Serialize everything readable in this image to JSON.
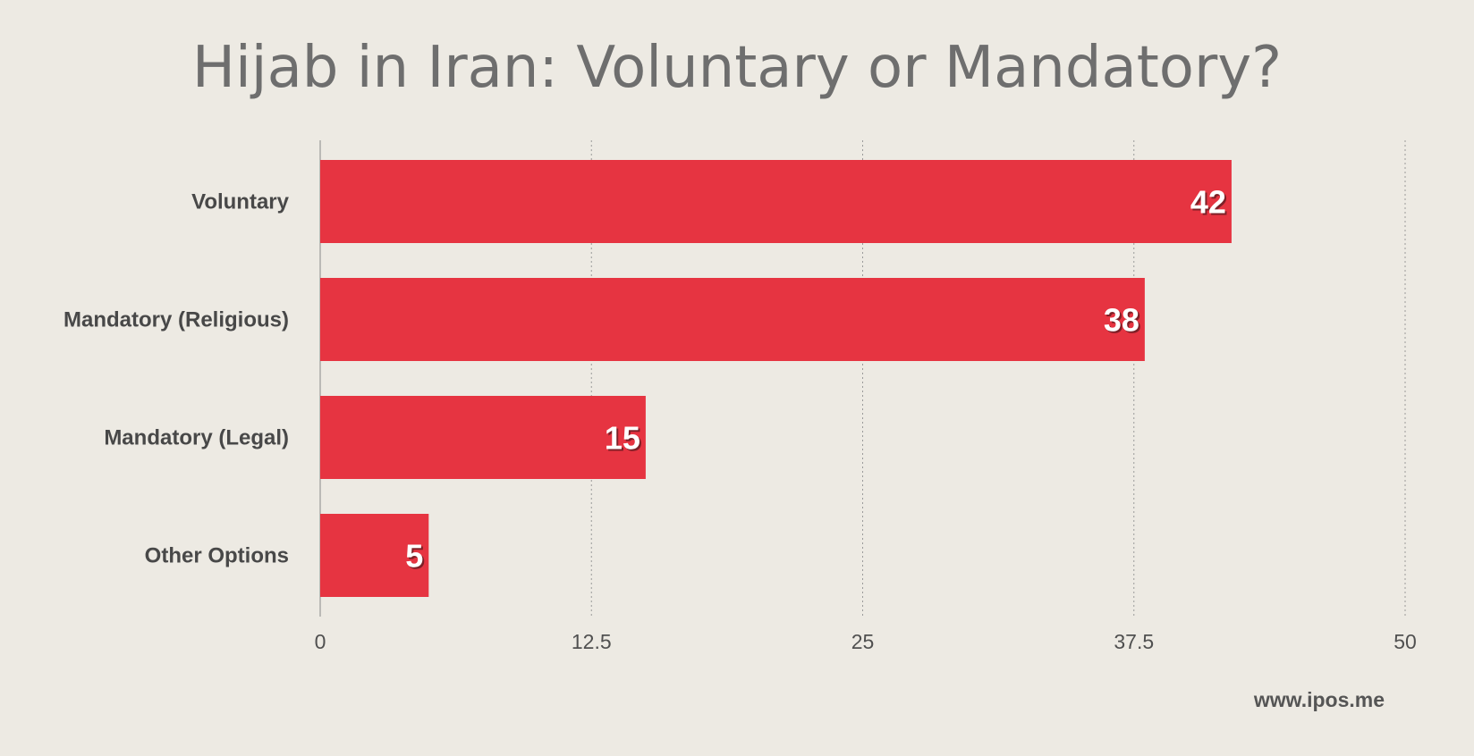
{
  "chart_data": {
    "type": "bar",
    "orientation": "horizontal",
    "title": "Hijab in Iran: Voluntary or Mandatory?",
    "categories": [
      "Voluntary",
      "Mandatory (Religious)",
      "Mandatory (Legal)",
      "Other Options"
    ],
    "values": [
      42,
      38,
      15,
      5
    ],
    "xlim": [
      0,
      50
    ],
    "xticks": [
      "0",
      "12.5",
      "25",
      "37.5",
      "50"
    ],
    "grid": true,
    "bar_color": "#e63441",
    "xlabel": "",
    "ylabel": ""
  },
  "watermark": "www.ipos.me"
}
